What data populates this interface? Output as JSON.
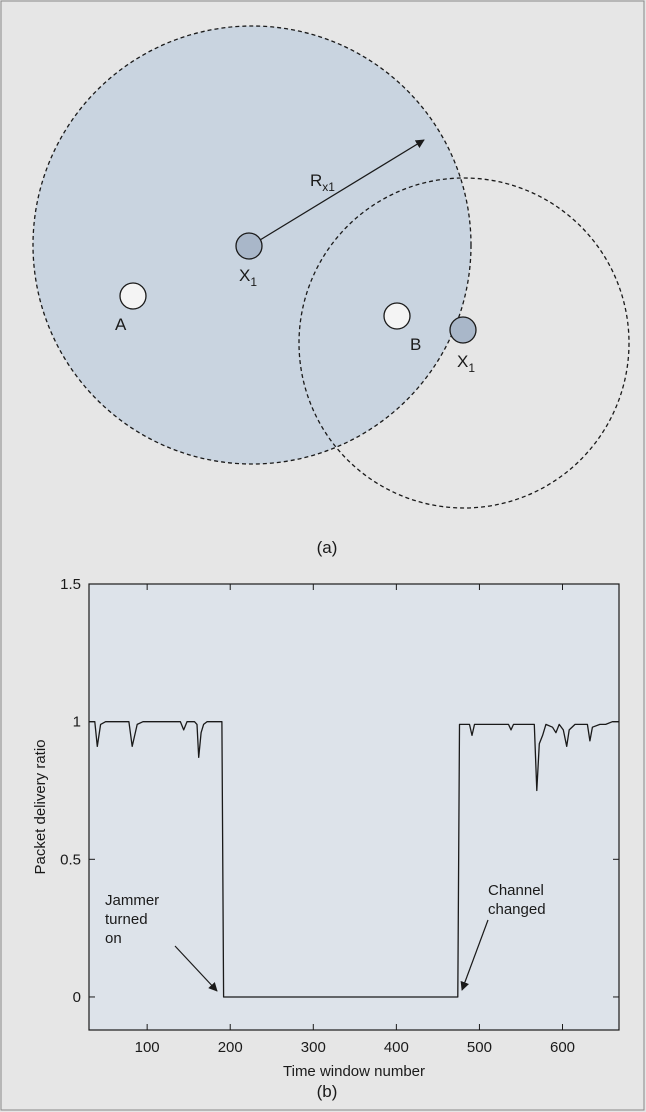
{
  "panel_a": {
    "caption": "(a)",
    "radius_label": {
      "main": "R",
      "sub": "x1"
    },
    "nodes": [
      {
        "id": "X1-left",
        "main": "X",
        "sub": "1",
        "kind": "jammer"
      },
      {
        "id": "A",
        "main": "A",
        "sub": "",
        "kind": "node"
      },
      {
        "id": "B",
        "main": "B",
        "sub": "",
        "kind": "node"
      },
      {
        "id": "X1-right",
        "main": "X",
        "sub": "1",
        "kind": "jammer"
      }
    ]
  },
  "panel_b": {
    "caption": "(b)",
    "annotations": {
      "jammer": [
        "Jammer",
        "turned",
        "on"
      ],
      "channel": [
        "Channel",
        "changed"
      ]
    }
  },
  "chart_data": {
    "type": "line",
    "title": "",
    "xlabel": "Time window number",
    "ylabel": "Packet delivery ratio",
    "xlim": [
      30,
      668
    ],
    "ylim": [
      -0.12,
      1.5
    ],
    "xticks": [
      100,
      200,
      300,
      400,
      500,
      600
    ],
    "yticks": [
      0,
      0.5,
      1,
      1.5
    ],
    "ytick_labels": [
      "0",
      "0.5",
      "1",
      "1.5"
    ],
    "grid": false,
    "series": [
      {
        "name": "",
        "x": [
          30,
          37,
          40,
          44,
          50,
          78,
          82,
          88,
          95,
          140,
          144,
          148,
          157,
          160,
          162,
          165,
          168,
          172,
          188,
          190,
          192,
          474,
          476,
          478,
          488,
          491,
          494,
          500,
          535,
          538,
          541,
          560,
          566,
          569,
          572,
          576,
          580,
          588,
          592,
          596,
          601,
          605,
          608,
          615,
          625,
          630,
          633,
          636,
          645,
          652,
          660,
          668
        ],
        "y": [
          1.0,
          1.0,
          0.91,
          0.99,
          1.0,
          1.0,
          0.91,
          0.99,
          1.0,
          1.0,
          0.97,
          1.0,
          1.0,
          0.99,
          0.87,
          0.96,
          0.99,
          1.0,
          1.0,
          1.0,
          0.0,
          0.0,
          0.99,
          0.99,
          0.99,
          0.95,
          0.99,
          0.99,
          0.99,
          0.97,
          0.99,
          0.99,
          0.99,
          0.75,
          0.92,
          0.95,
          0.99,
          0.98,
          0.96,
          0.99,
          0.97,
          0.91,
          0.97,
          0.99,
          0.99,
          0.99,
          0.93,
          0.98,
          0.99,
          0.99,
          1.0,
          1.0
        ]
      }
    ],
    "annotations": [
      {
        "text": "Jammer turned on",
        "x": 190,
        "y": 0.0
      },
      {
        "text": "Channel changed",
        "x": 474,
        "y": 0.0
      }
    ]
  }
}
